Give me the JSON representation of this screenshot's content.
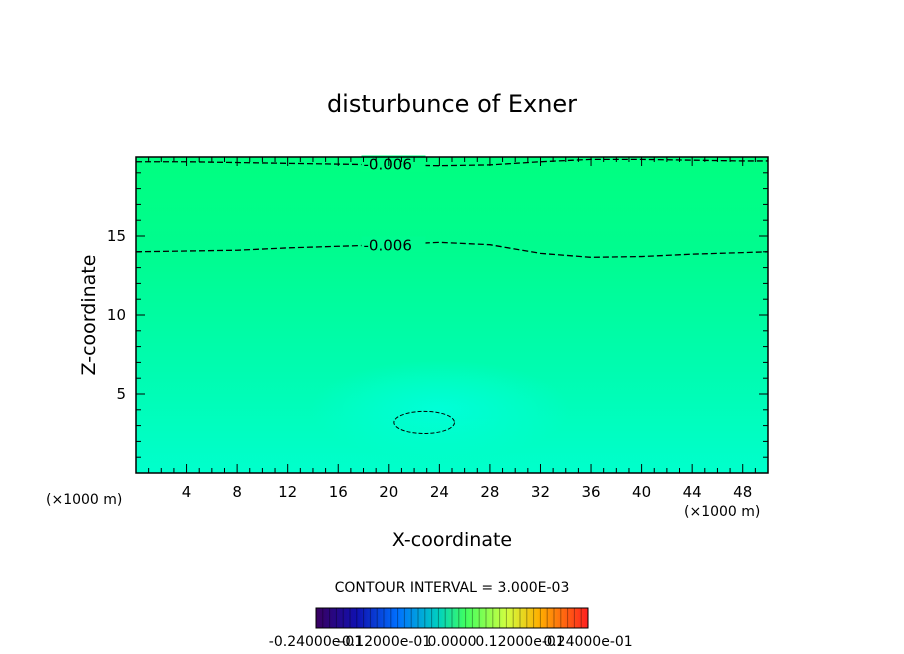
{
  "chart_data": {
    "type": "heatmap",
    "title": "disturbunce of Exner",
    "xlabel": "X-coordinate",
    "ylabel": "Z-coordinate",
    "x_unit": "(×1000 m)",
    "xlim": [
      0,
      50
    ],
    "ylim": [
      0,
      20
    ],
    "x_ticks": [
      "4",
      "8",
      "12",
      "16",
      "20",
      "24",
      "28",
      "32",
      "36",
      "40",
      "44",
      "48"
    ],
    "y_ticks": [
      "5",
      "10",
      "15"
    ],
    "contour_interval_text": "CONTOUR INTERVAL = 3.000E-03",
    "contours": [
      {
        "label": "-0.006",
        "style": "dashed",
        "x": [
          0,
          4,
          8,
          12,
          16,
          20,
          24,
          28,
          32,
          36,
          40,
          44,
          48,
          50
        ],
        "y": [
          14.0,
          14.05,
          14.1,
          14.25,
          14.35,
          14.45,
          14.6,
          14.45,
          13.9,
          13.65,
          13.7,
          13.85,
          13.95,
          14.0
        ]
      },
      {
        "label": "-0.006",
        "style": "dashed",
        "x": [
          0,
          4,
          8,
          12,
          16,
          20,
          24,
          28,
          32,
          36,
          40,
          44,
          48,
          50
        ],
        "y": [
          19.7,
          19.7,
          19.65,
          19.6,
          19.55,
          19.5,
          19.45,
          19.5,
          19.7,
          19.85,
          19.85,
          19.8,
          19.75,
          19.75
        ]
      },
      {
        "label": "",
        "style": "dashed",
        "type": "ellipse",
        "center": [
          22.8,
          3.2
        ],
        "radii": [
          2.4,
          0.7
        ]
      }
    ],
    "colorbar": {
      "labels": [
        "-0.24000e-01",
        "-0.12000e-01",
        "0.0000",
        "0.12000e-01",
        "0.24000e-01"
      ],
      "range": [
        -0.024,
        0.024
      ]
    },
    "colors": {
      "low": "#00ffcc",
      "mid": "#00fca0",
      "high": "#00ff84"
    }
  }
}
